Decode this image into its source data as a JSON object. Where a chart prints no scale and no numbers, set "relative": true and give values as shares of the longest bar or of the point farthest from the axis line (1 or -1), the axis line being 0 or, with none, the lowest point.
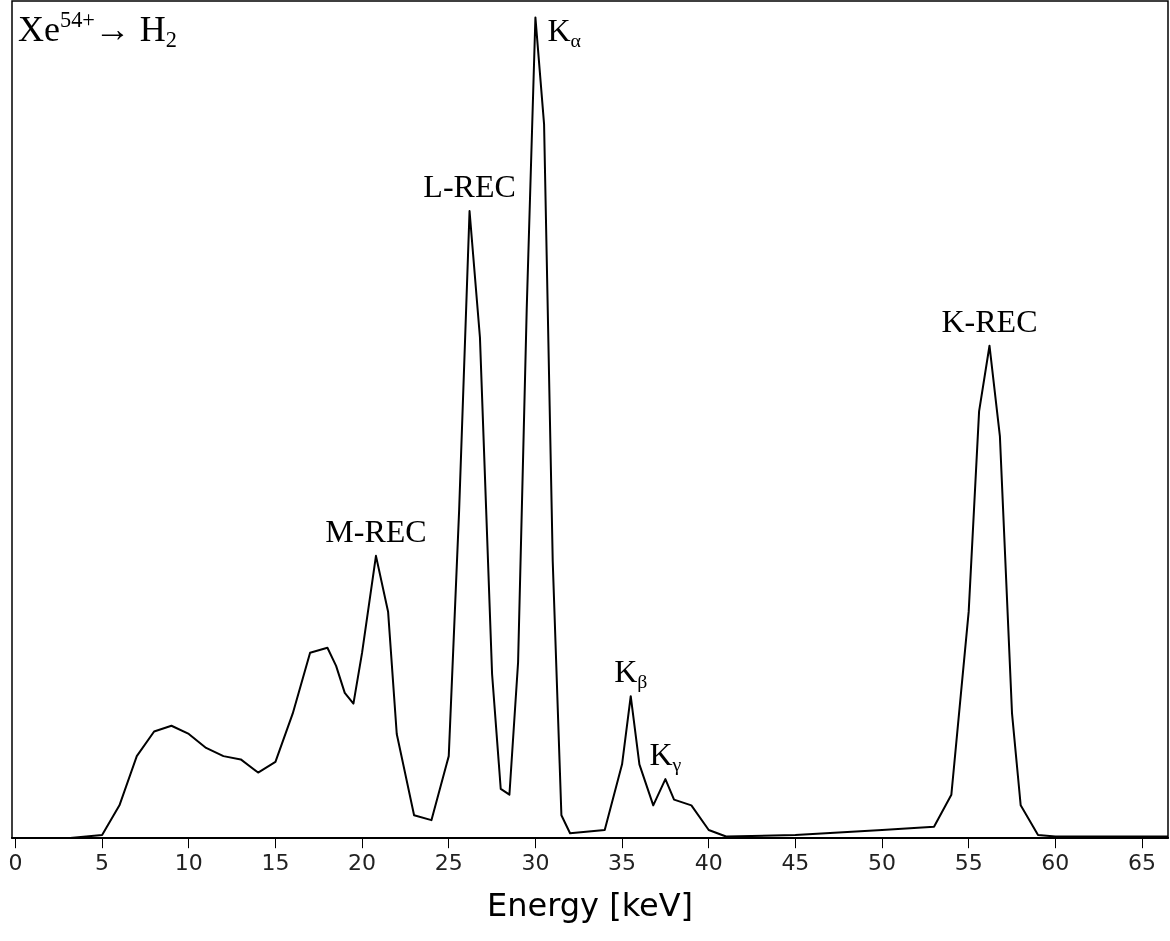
{
  "chart_data": {
    "type": "line",
    "relative": true,
    "xlabel": "Energy [keV]",
    "xlim": [
      -0.2,
      66.5
    ],
    "xticks": [
      0,
      5,
      10,
      15,
      20,
      25,
      30,
      35,
      40,
      45,
      50,
      55,
      60,
      65
    ],
    "grid": false,
    "legend": false,
    "marker": "none",
    "line_style": "solid",
    "annotations": [
      "Xe$^{54+}$→ H$_{2}$",
      {
        "text": "M-REC",
        "x": 20.8,
        "y": 0.344
      },
      {
        "text": "L-REC",
        "x": 26.2,
        "y": 0.764
      },
      {
        "text": "K$_{α}$",
        "x": 30,
        "y": 1.0
      },
      {
        "text": "K$_{β}$",
        "x": 35.5,
        "y": 0.173
      },
      {
        "text": "K$_{γ}$",
        "x": 37.5,
        "y": 0.072
      },
      {
        "text": "K-REC",
        "x": 56.2,
        "y": 0.6
      }
    ],
    "series": [
      {
        "color": "#000000",
        "x": [
          3,
          5,
          6,
          7,
          8,
          9,
          10,
          11,
          12,
          13,
          14,
          15,
          16,
          17,
          18,
          18.5,
          19,
          19.5,
          20,
          20.8,
          21.5,
          22,
          23,
          24,
          25,
          25.6,
          26.2,
          26.8,
          27.5,
          28,
          28.5,
          29,
          29.5,
          30,
          30.5,
          31,
          31.5,
          32,
          34,
          35,
          35.5,
          36,
          36.8,
          37.5,
          38,
          39,
          40,
          41,
          45,
          50,
          53,
          54,
          55,
          55.6,
          56.2,
          56.8,
          57.5,
          58,
          59,
          60,
          66.5
        ],
        "values": [
          0,
          0.004,
          0.04,
          0.1,
          0.13,
          0.137,
          0.127,
          0.11,
          0.1,
          0.096,
          0.08,
          0.093,
          0.152,
          0.226,
          0.232,
          0.21,
          0.177,
          0.164,
          0.226,
          0.344,
          0.276,
          0.127,
          0.028,
          0.022,
          0.1,
          0.4,
          0.764,
          0.61,
          0.2,
          0.06,
          0.053,
          0.214,
          0.646,
          1.0,
          0.87,
          0.337,
          0.028,
          0.006,
          0.01,
          0.09,
          0.173,
          0.09,
          0.04,
          0.072,
          0.047,
          0.04,
          0.01,
          0.002,
          0.004,
          0.01,
          0.014,
          0.053,
          0.276,
          0.52,
          0.6,
          0.49,
          0.152,
          0.04,
          0.004,
          0.002,
          0.002
        ]
      }
    ]
  }
}
